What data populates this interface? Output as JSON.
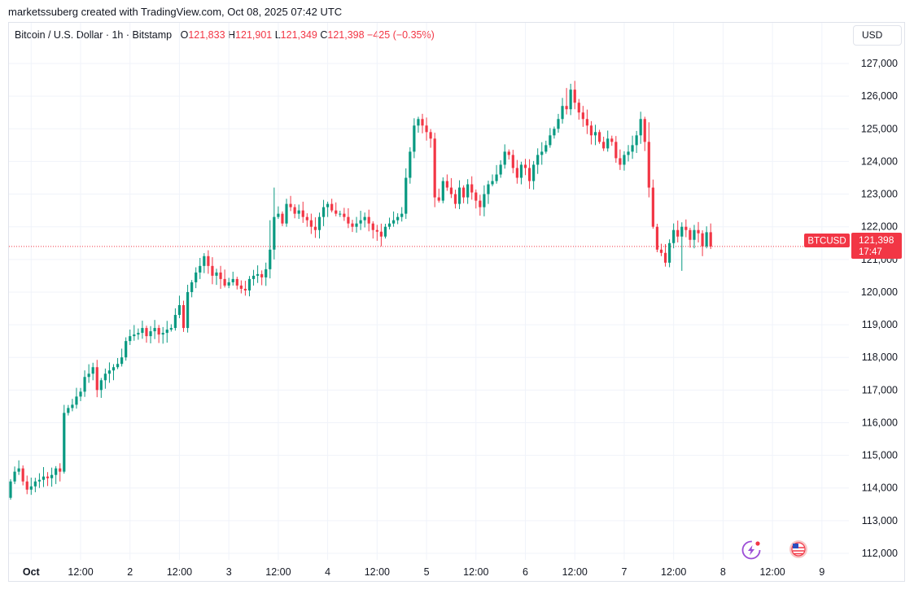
{
  "credit": "marketssuberg created with TradingView.com, Oct 08, 2025 07:42 UTC",
  "legend": {
    "symbol": "Bitcoin / U.S. Dollar · 1h · Bitstamp",
    "open_label": "O",
    "open": "121,833",
    "high_label": "H",
    "high": "121,901",
    "low_label": "L",
    "low": "121,349",
    "close_label": "C",
    "close": "121,398",
    "change": "−425 (−0.35%)"
  },
  "currency": "USD",
  "price_tag": {
    "symbol": "BTCUSD",
    "price": "121,398",
    "countdown": "17:47"
  },
  "colors": {
    "up": "#089981",
    "down": "#f23645",
    "grid": "#f0f3fa",
    "axis_text": "#131722"
  },
  "icons": [
    "lightning-logo-icon",
    "us-flag-icon"
  ],
  "chart_data": {
    "type": "candlestick",
    "timeframe": "1h",
    "ylim": [
      111750,
      127400
    ],
    "y_ticks": [
      {
        "value": 127000,
        "label": "127,000"
      },
      {
        "value": 126000,
        "label": "126,000"
      },
      {
        "value": 125000,
        "label": "125,000"
      },
      {
        "value": 124000,
        "label": "124,000"
      },
      {
        "value": 123000,
        "label": "123,000"
      },
      {
        "value": 122000,
        "label": "122,000"
      },
      {
        "value": 121000,
        "label": "121,000"
      },
      {
        "value": 120000,
        "label": "120,000"
      },
      {
        "value": 119000,
        "label": "119,000"
      },
      {
        "value": 118000,
        "label": "118,000"
      },
      {
        "value": 117000,
        "label": "117,000"
      },
      {
        "value": 116000,
        "label": "116,000"
      },
      {
        "value": 115000,
        "label": "115,000"
      },
      {
        "value": 114000,
        "label": "114,000"
      },
      {
        "value": 113000,
        "label": "113,000"
      },
      {
        "value": 112000,
        "label": "112,000"
      }
    ],
    "x_ticks": [
      {
        "hour": 5,
        "label": "Oct",
        "bold": true
      },
      {
        "hour": 17,
        "label": "12:00"
      },
      {
        "hour": 29,
        "label": "2"
      },
      {
        "hour": 41,
        "label": "12:00"
      },
      {
        "hour": 53,
        "label": "3"
      },
      {
        "hour": 65,
        "label": "12:00"
      },
      {
        "hour": 77,
        "label": "4"
      },
      {
        "hour": 89,
        "label": "12:00"
      },
      {
        "hour": 101,
        "label": "5"
      },
      {
        "hour": 113,
        "label": "12:00"
      },
      {
        "hour": 125,
        "label": "6"
      },
      {
        "hour": 137,
        "label": "12:00"
      },
      {
        "hour": 149,
        "label": "7"
      },
      {
        "hour": 161,
        "label": "12:00"
      },
      {
        "hour": 173,
        "label": "8"
      },
      {
        "hour": 185,
        "label": "12:00"
      },
      {
        "hour": 197,
        "label": "9"
      }
    ],
    "last_price": 121398,
    "closes": [
      114200,
      114500,
      114600,
      114200,
      113950,
      114050,
      114200,
      114250,
      114350,
      114300,
      114400,
      114600,
      114500,
      116300,
      116450,
      116550,
      116800,
      116950,
      117400,
      117500,
      117700,
      117000,
      117300,
      117500,
      117600,
      117700,
      117800,
      118000,
      118500,
      118650,
      118700,
      118750,
      118900,
      118650,
      118800,
      118900,
      118700,
      118750,
      118850,
      118900,
      119300,
      119600,
      118900,
      120000,
      120300,
      120600,
      120800,
      121100,
      120800,
      120500,
      120600,
      120400,
      120200,
      120300,
      120400,
      120200,
      120100,
      120050,
      120400,
      120500,
      120550,
      120450,
      120700,
      121300,
      122300,
      122400,
      122100,
      122700,
      122600,
      122400,
      122500,
      122300,
      122200,
      122000,
      121900,
      122300,
      122600,
      122700,
      122500,
      122400,
      122400,
      122300,
      122100,
      122000,
      122100,
      122200,
      122300,
      122100,
      121900,
      121850,
      121700,
      122000,
      122100,
      122200,
      122300,
      122400,
      123500,
      124300,
      125100,
      125300,
      125100,
      124900,
      124700,
      122900,
      122800,
      123400,
      123200,
      123000,
      122700,
      123200,
      122900,
      123300,
      123050,
      122800,
      122600,
      123000,
      123300,
      123400,
      123600,
      123900,
      124300,
      124200,
      123800,
      123500,
      123900,
      123800,
      123400,
      123900,
      124200,
      124300,
      124500,
      124800,
      125000,
      125300,
      125700,
      125600,
      126200,
      125800,
      125500,
      125300,
      125100,
      124800,
      124900,
      124600,
      124400,
      124700,
      124600,
      124100,
      123900,
      124200,
      124300,
      124500,
      124800,
      125300,
      124600,
      123200,
      122000,
      121300,
      121200,
      120900,
      121500,
      121900,
      121700,
      122000,
      121900,
      121600,
      121900,
      121800,
      121400,
      121833,
      121398
    ]
  }
}
